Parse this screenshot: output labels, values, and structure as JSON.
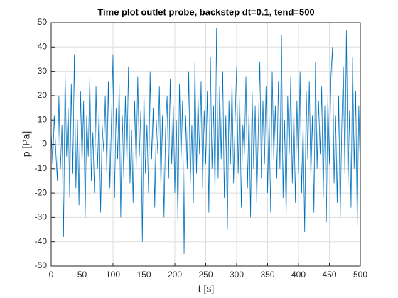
{
  "chart_data": {
    "type": "line",
    "title": "Time plot outlet probe, backstep dt=0.1, tend=500",
    "xlabel": "t [s]",
    "ylabel": "p [Pa]",
    "x": [
      0,
      2.5,
      5,
      7.5,
      10,
      12.5,
      15,
      17.5,
      20,
      22.5,
      25,
      27.5,
      30,
      32.5,
      35,
      37.5,
      40,
      42.5,
      45,
      47.5,
      50,
      52.5,
      55,
      57.5,
      60,
      62.5,
      65,
      67.5,
      70,
      72.5,
      75,
      77.5,
      80,
      82.5,
      85,
      87.5,
      90,
      92.5,
      95,
      97.5,
      100,
      102.5,
      105,
      107.5,
      110,
      112.5,
      115,
      117.5,
      120,
      122.5,
      125,
      127.5,
      130,
      132.5,
      135,
      137.5,
      140,
      142.5,
      145,
      147.5,
      150,
      152.5,
      155,
      157.5,
      160,
      162.5,
      165,
      167.5,
      170,
      172.5,
      175,
      177.5,
      180,
      182.5,
      185,
      187.5,
      190,
      192.5,
      195,
      197.5,
      200,
      202.5,
      205,
      207.5,
      210,
      212.5,
      215,
      217.5,
      220,
      222.5,
      225,
      227.5,
      230,
      232.5,
      235,
      237.5,
      240,
      242.5,
      245,
      247.5,
      250,
      252.5,
      255,
      257.5,
      260,
      262.5,
      265,
      267.5,
      270,
      272.5,
      275,
      277.5,
      280,
      282.5,
      285,
      287.5,
      290,
      292.5,
      295,
      297.5,
      300,
      302.5,
      305,
      307.5,
      310,
      312.5,
      315,
      317.5,
      320,
      322.5,
      325,
      327.5,
      330,
      332.5,
      335,
      337.5,
      340,
      342.5,
      345,
      347.5,
      350,
      352.5,
      355,
      357.5,
      360,
      362.5,
      365,
      367.5,
      370,
      372.5,
      375,
      377.5,
      380,
      382.5,
      385,
      387.5,
      390,
      392.5,
      395,
      397.5,
      400,
      402.5,
      405,
      407.5,
      410,
      412.5,
      415,
      417.5,
      420,
      422.5,
      425,
      427.5,
      430,
      432.5,
      435,
      437.5,
      440,
      442.5,
      445,
      447.5,
      450,
      452.5,
      455,
      457.5,
      460,
      462.5,
      465,
      467.5,
      470,
      472.5,
      475,
      477.5,
      480,
      482.5,
      485,
      487.5,
      490,
      492.5,
      495,
      497.5,
      500
    ],
    "series": [
      {
        "color": "#0072bd",
        "values": [
          5,
          -8,
          12,
          -3,
          -15,
          20,
          -10,
          8,
          -38,
          30,
          -5,
          15,
          -22,
          25,
          -12,
          37,
          -18,
          10,
          -25,
          22,
          -8,
          18,
          -30,
          12,
          -5,
          28,
          -15,
          5,
          -20,
          24,
          -10,
          14,
          -28,
          8,
          -3,
          20,
          -12,
          26,
          -18,
          10,
          37,
          -22,
          15,
          -6,
          25,
          -30,
          12,
          -14,
          20,
          -8,
          32,
          -16,
          6,
          -24,
          18,
          -10,
          28,
          -5,
          14,
          -40,
          22,
          -12,
          8,
          -20,
          30,
          -6,
          15,
          -26,
          10,
          -4,
          24,
          -18,
          12,
          -30,
          6,
          20,
          -14,
          27,
          -8,
          16,
          -20,
          10,
          -32,
          25,
          -6,
          18,
          -45,
          12,
          -10,
          30,
          -16,
          8,
          -24,
          34,
          -12,
          20,
          -4,
          26,
          -18,
          14,
          -8,
          22,
          -28,
          36,
          -10,
          16,
          -20,
          48,
          -14,
          24,
          -6,
          30,
          -22,
          12,
          -35,
          18,
          -8,
          26,
          -16,
          10,
          32,
          -12,
          20,
          -26,
          8,
          -4,
          28,
          -18,
          14,
          -30,
          22,
          -10,
          16,
          -24,
          6,
          34,
          -14,
          18,
          -8,
          24,
          -20,
          12,
          -28,
          30,
          -6,
          16,
          -14,
          26,
          -10,
          45,
          -22,
          10,
          -30,
          20,
          -4,
          28,
          -16,
          14,
          -24,
          18,
          -12,
          30,
          -20,
          8,
          -36,
          22,
          -6,
          26,
          -14,
          12,
          -28,
          34,
          -10,
          18,
          -4,
          24,
          -22,
          16,
          -32,
          20,
          -8,
          28,
          40,
          -16,
          12,
          -24,
          20,
          -30,
          8,
          32,
          -12,
          47,
          -18,
          14,
          -26,
          36,
          -10,
          22,
          -34,
          16,
          -12
        ]
      }
    ],
    "xlim": [
      0,
      500
    ],
    "xticks": [
      0,
      50,
      100,
      150,
      200,
      250,
      300,
      350,
      400,
      450,
      500
    ],
    "ylim": [
      -50,
      50
    ],
    "yticks": [
      -50,
      -40,
      -30,
      -20,
      -10,
      0,
      10,
      20,
      30,
      40,
      50
    ],
    "grid": true
  }
}
